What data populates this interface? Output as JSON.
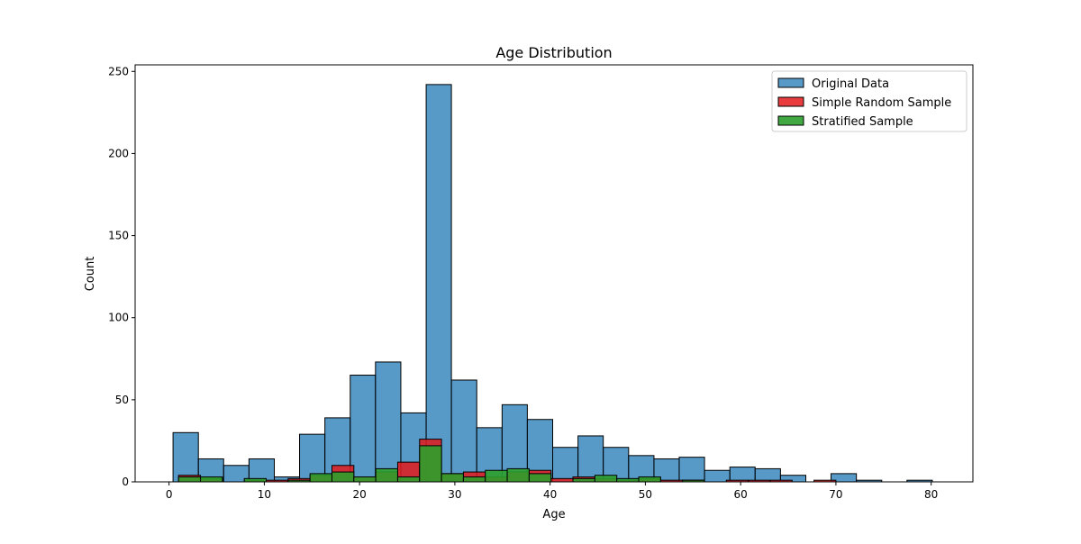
{
  "chart_data": {
    "type": "bar",
    "title": "Age Distribution",
    "xlabel": "Age",
    "ylabel": "Count",
    "xlim": [
      -3.56,
      84.38
    ],
    "ylim": [
      0,
      254
    ],
    "xticks": [
      0,
      10,
      20,
      30,
      40,
      50,
      60,
      70,
      80
    ],
    "yticks": [
      0,
      50,
      100,
      150,
      200,
      250
    ],
    "legend_position": "upper right",
    "series": [
      {
        "name": "Original Data",
        "color": "#1f77b4",
        "alpha": 0.75,
        "bins": [
          [
            0.42,
            3.08,
            30
          ],
          [
            3.08,
            5.73,
            14
          ],
          [
            5.73,
            8.39,
            10
          ],
          [
            8.39,
            11.05,
            14
          ],
          [
            11.05,
            13.7,
            3
          ],
          [
            13.7,
            16.36,
            29
          ],
          [
            16.36,
            19.02,
            39
          ],
          [
            19.02,
            21.67,
            65
          ],
          [
            21.67,
            24.33,
            73
          ],
          [
            24.33,
            26.99,
            42
          ],
          [
            26.99,
            29.64,
            242
          ],
          [
            29.64,
            32.3,
            62
          ],
          [
            32.3,
            34.96,
            33
          ],
          [
            34.96,
            37.61,
            47
          ],
          [
            37.61,
            40.27,
            38
          ],
          [
            40.27,
            42.93,
            21
          ],
          [
            42.93,
            45.58,
            28
          ],
          [
            45.58,
            48.24,
            21
          ],
          [
            48.24,
            50.9,
            16
          ],
          [
            50.9,
            53.55,
            14
          ],
          [
            53.55,
            56.21,
            15
          ],
          [
            56.21,
            58.87,
            7
          ],
          [
            58.87,
            61.52,
            9
          ],
          [
            61.52,
            64.18,
            8
          ],
          [
            64.18,
            66.84,
            4
          ],
          [
            66.84,
            69.49,
            0
          ],
          [
            69.49,
            72.15,
            5
          ],
          [
            72.15,
            74.81,
            1
          ],
          [
            74.81,
            77.46,
            0
          ],
          [
            77.46,
            80.12,
            1
          ]
        ]
      },
      {
        "name": "Simple Random Sample",
        "color": "#e41a1c",
        "alpha": 0.85,
        "bins": [
          [
            1.0,
            3.3,
            4
          ],
          [
            3.3,
            5.6,
            2
          ],
          [
            5.6,
            7.9,
            0
          ],
          [
            7.9,
            10.2,
            1
          ],
          [
            10.2,
            12.5,
            1
          ],
          [
            12.5,
            14.8,
            2
          ],
          [
            14.8,
            17.1,
            4
          ],
          [
            17.1,
            19.4,
            10
          ],
          [
            19.4,
            21.7,
            3
          ],
          [
            21.7,
            24.0,
            6
          ],
          [
            24.0,
            26.3,
            12
          ],
          [
            26.3,
            28.6,
            26
          ],
          [
            28.6,
            30.9,
            5
          ],
          [
            30.9,
            33.2,
            6
          ],
          [
            33.2,
            35.5,
            3
          ],
          [
            35.5,
            37.8,
            6
          ],
          [
            37.8,
            40.1,
            7
          ],
          [
            40.1,
            42.4,
            2
          ],
          [
            42.4,
            44.7,
            3
          ],
          [
            44.7,
            47.0,
            2
          ],
          [
            47.0,
            49.3,
            1
          ],
          [
            49.3,
            51.6,
            2
          ],
          [
            51.6,
            53.9,
            1
          ],
          [
            53.9,
            56.2,
            1
          ],
          [
            56.2,
            58.5,
            0
          ],
          [
            58.5,
            60.8,
            1
          ],
          [
            60.8,
            63.1,
            1
          ],
          [
            63.1,
            65.4,
            1
          ],
          [
            65.4,
            67.7,
            0
          ],
          [
            67.7,
            70.0,
            1
          ]
        ]
      },
      {
        "name": "Stratified Sample",
        "color": "#2ca02c",
        "alpha": 0.9,
        "bins": [
          [
            1.0,
            3.3,
            3
          ],
          [
            3.3,
            5.6,
            3
          ],
          [
            5.6,
            7.9,
            0
          ],
          [
            7.9,
            10.2,
            2
          ],
          [
            10.2,
            12.5,
            0
          ],
          [
            12.5,
            14.8,
            1
          ],
          [
            14.8,
            17.1,
            5
          ],
          [
            17.1,
            19.4,
            6
          ],
          [
            19.4,
            21.7,
            3
          ],
          [
            21.7,
            24.0,
            8
          ],
          [
            24.0,
            26.3,
            3
          ],
          [
            26.3,
            28.6,
            22
          ],
          [
            28.6,
            30.9,
            5
          ],
          [
            30.9,
            33.2,
            3
          ],
          [
            33.2,
            35.5,
            7
          ],
          [
            35.5,
            37.8,
            8
          ],
          [
            37.8,
            40.1,
            5
          ],
          [
            40.1,
            42.4,
            0
          ],
          [
            42.4,
            44.7,
            2
          ],
          [
            44.7,
            47.0,
            4
          ],
          [
            47.0,
            49.3,
            2
          ],
          [
            49.3,
            51.6,
            3
          ],
          [
            51.6,
            53.9,
            0
          ],
          [
            53.9,
            56.2,
            1
          ],
          [
            56.2,
            58.5,
            0
          ],
          [
            58.5,
            60.8,
            0
          ],
          [
            60.8,
            63.1,
            0
          ],
          [
            63.1,
            65.4,
            0
          ],
          [
            65.4,
            67.7,
            0
          ],
          [
            67.7,
            70.0,
            0
          ]
        ]
      }
    ]
  }
}
